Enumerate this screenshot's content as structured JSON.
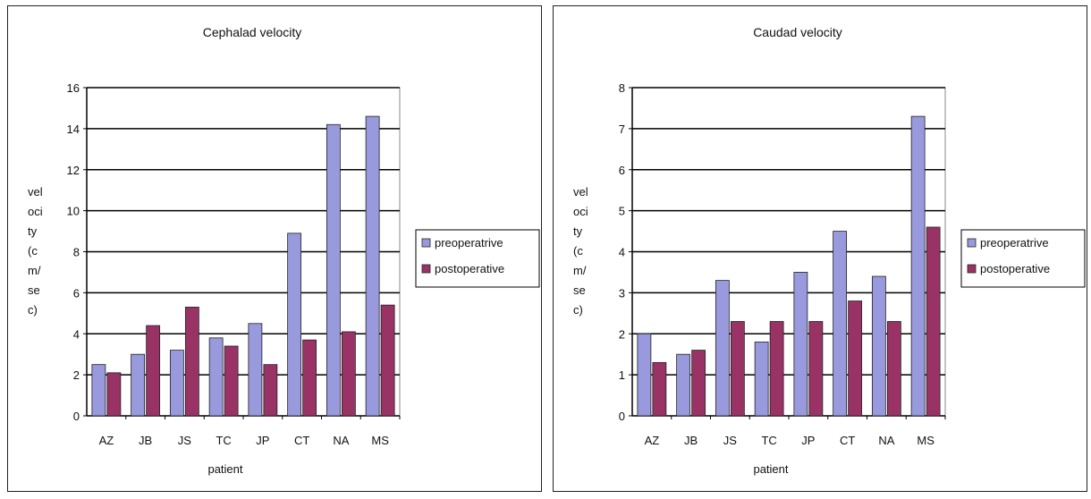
{
  "chart_data": [
    {
      "type": "bar",
      "title": "Cephalad velocity",
      "xlabel": "patient",
      "ylabel_lines": [
        "vel",
        "oci",
        "ty",
        "(c",
        "m/",
        "se",
        "c)"
      ],
      "categories": [
        "AZ",
        "JB",
        "JS",
        "TC",
        "JP",
        "CT",
        "NA",
        "MS"
      ],
      "ylim": [
        0,
        16
      ],
      "yticks": [
        0,
        2,
        4,
        6,
        8,
        10,
        12,
        14,
        16
      ],
      "series": [
        {
          "name": "preoperatrive",
          "color": "#9999dd",
          "values": [
            2.5,
            3.0,
            3.2,
            3.8,
            4.5,
            8.9,
            14.2,
            14.6
          ]
        },
        {
          "name": "postoperative",
          "color": "#993366",
          "values": [
            2.1,
            4.4,
            5.3,
            3.4,
            2.5,
            3.7,
            4.1,
            5.4
          ]
        }
      ],
      "grid": true,
      "legend": "right"
    },
    {
      "type": "bar",
      "title": "Caudad velocity",
      "xlabel": "patient",
      "ylabel_lines": [
        "vel",
        "oci",
        "ty",
        "(c",
        "m/",
        "se",
        "c)"
      ],
      "categories": [
        "AZ",
        "JB",
        "JS",
        "TC",
        "JP",
        "CT",
        "NA",
        "MS"
      ],
      "ylim": [
        0,
        8
      ],
      "yticks": [
        0,
        1,
        2,
        3,
        4,
        5,
        6,
        7,
        8
      ],
      "series": [
        {
          "name": "preoperatrive",
          "color": "#9999dd",
          "values": [
            2.0,
            1.5,
            3.3,
            1.8,
            3.5,
            4.5,
            3.4,
            7.3
          ]
        },
        {
          "name": "postoperative",
          "color": "#993366",
          "values": [
            1.3,
            1.6,
            2.3,
            2.3,
            2.3,
            2.8,
            2.3,
            4.6
          ]
        }
      ],
      "grid": true,
      "legend": "right"
    }
  ]
}
